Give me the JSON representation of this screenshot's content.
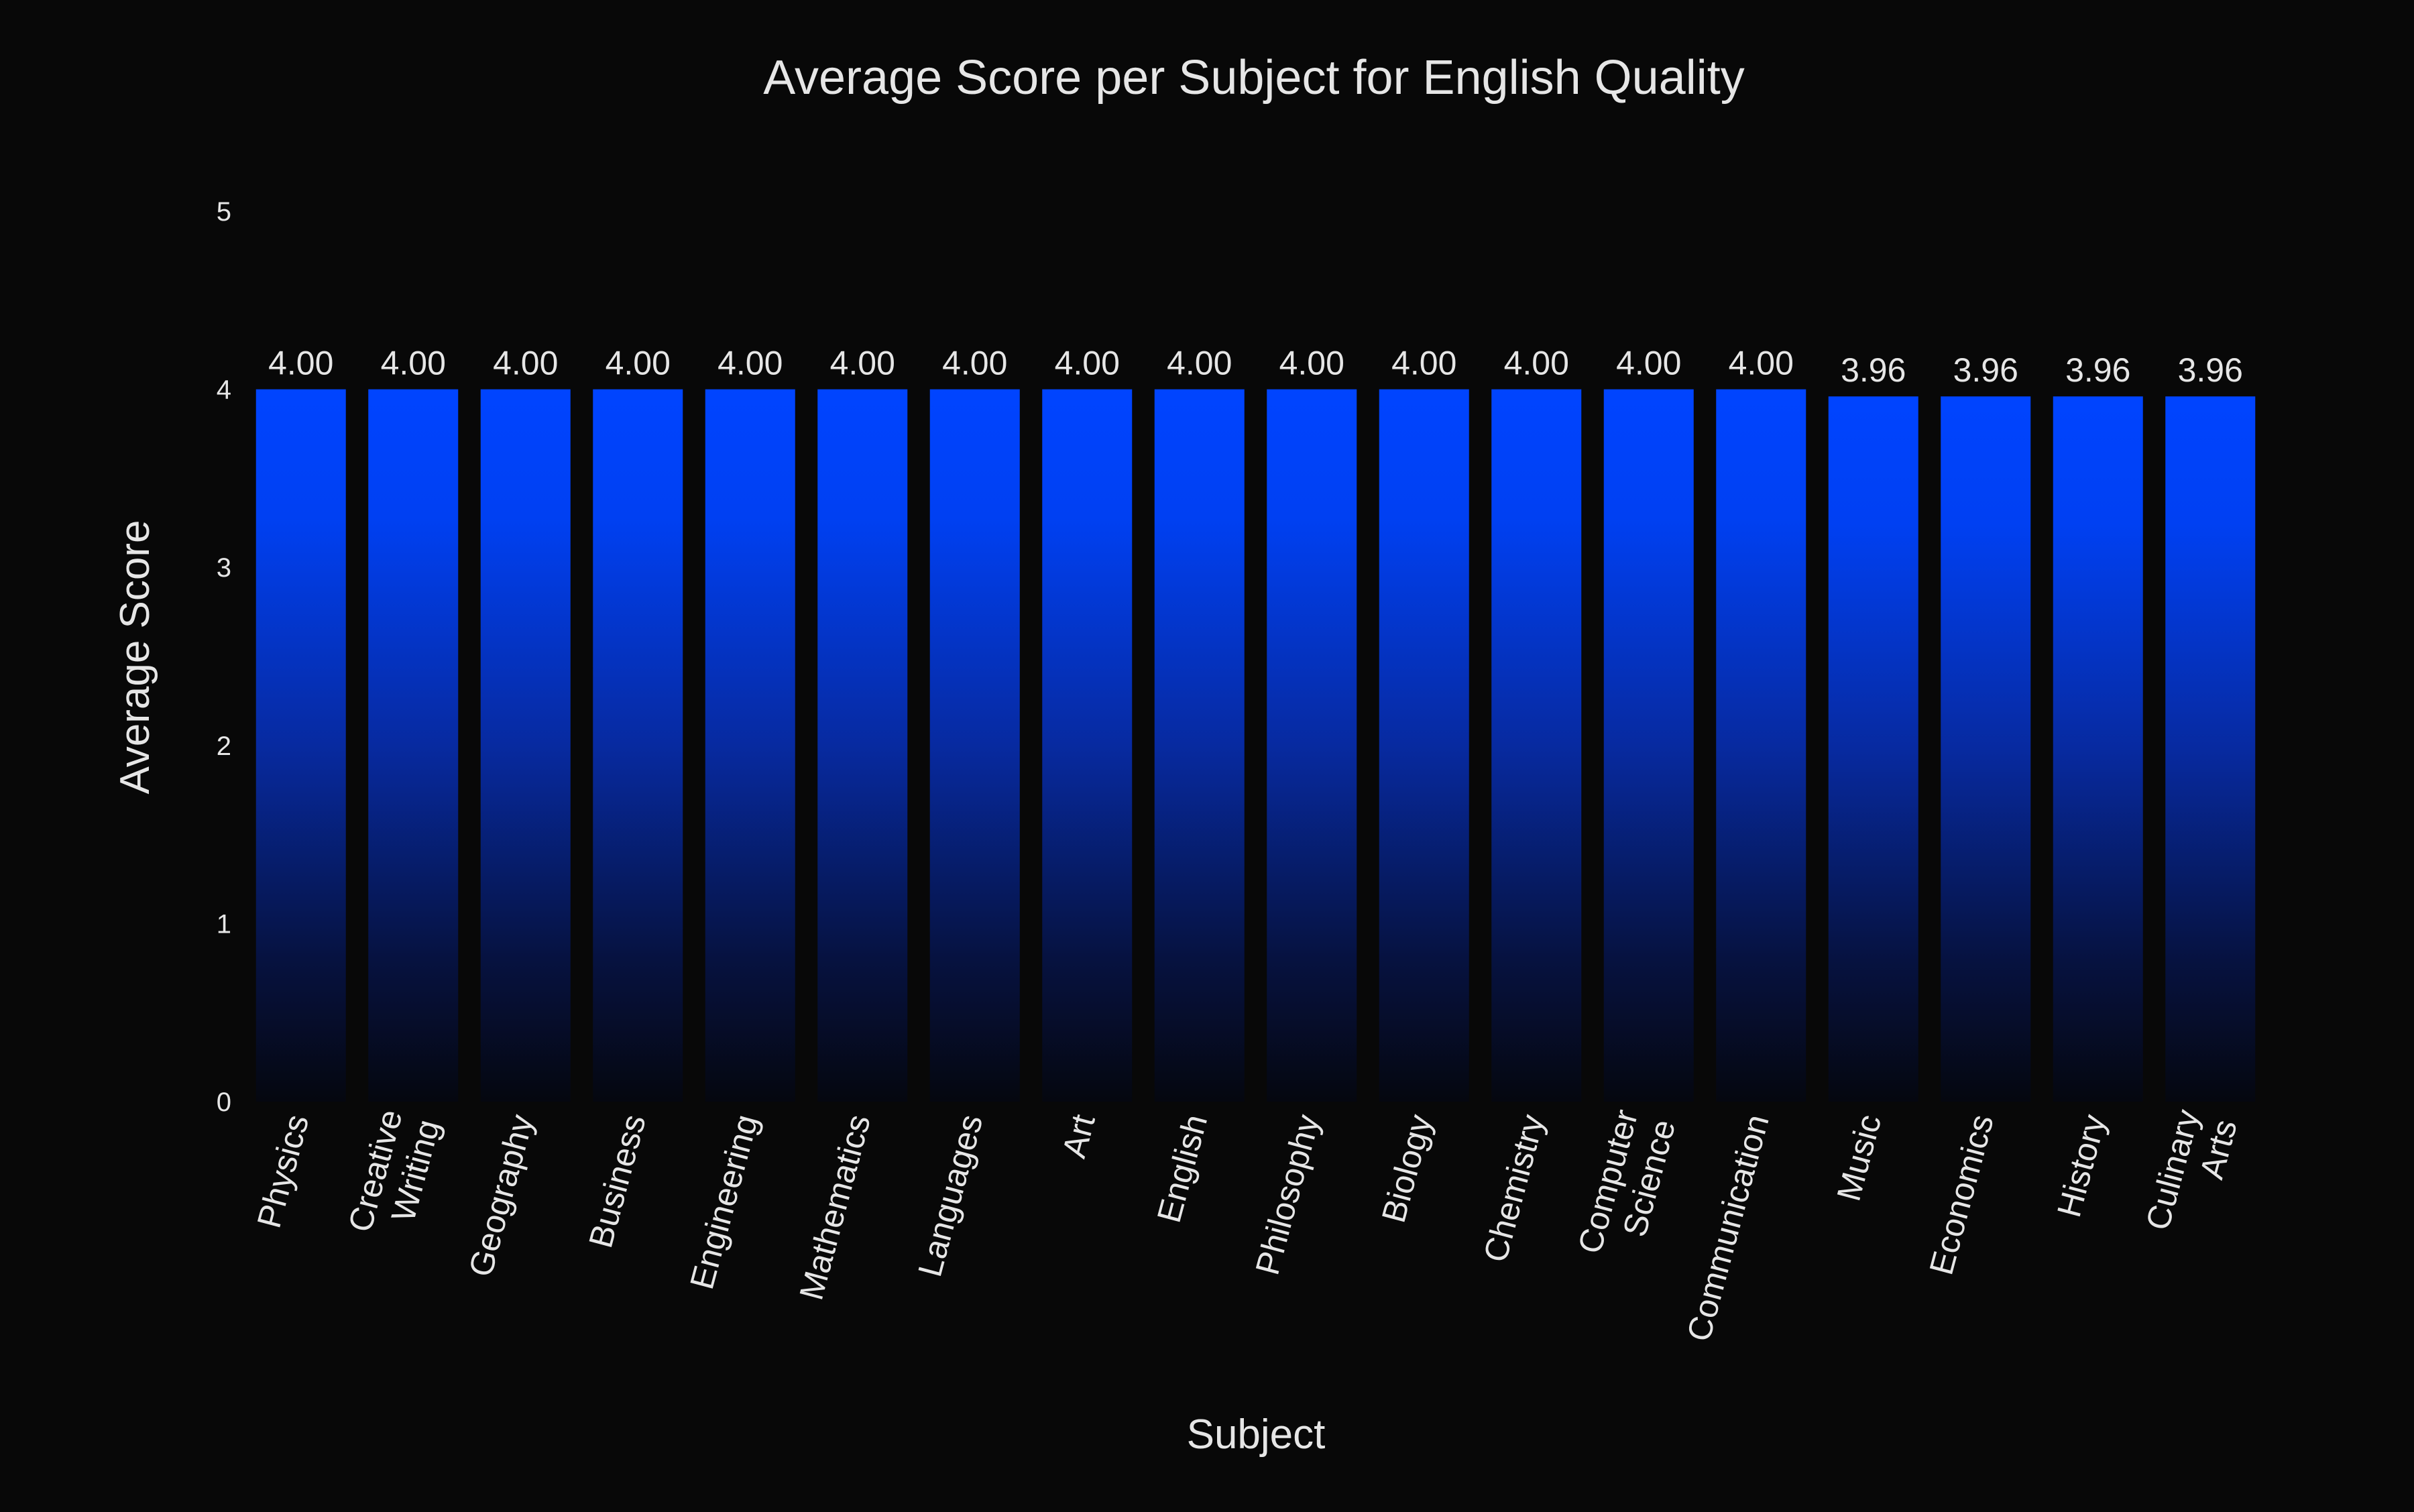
{
  "chart_data": {
    "type": "bar",
    "title": "Average Score per Subject for English Quality",
    "xlabel": "Subject",
    "ylabel": "Average Score",
    "categories": [
      "Physics",
      "Creative Writing",
      "Geography",
      "Business",
      "Engineering",
      "Mathematics",
      "Languages",
      "Art",
      "English",
      "Philosophy",
      "Biology",
      "Chemistry",
      "Computer Science",
      "Communication",
      "Music",
      "Economics",
      "History",
      "Culinary Arts"
    ],
    "values": [
      4.0,
      4.0,
      4.0,
      4.0,
      4.0,
      4.0,
      4.0,
      4.0,
      4.0,
      4.0,
      4.0,
      4.0,
      4.0,
      4.0,
      3.96,
      3.96,
      3.96,
      3.96
    ],
    "data_labels": [
      "4.00",
      "4.00",
      "4.00",
      "4.00",
      "4.00",
      "4.00",
      "4.00",
      "4.00",
      "4.00",
      "4.00",
      "4.00",
      "4.00",
      "4.00",
      "4.00",
      "3.96",
      "3.96",
      "3.96",
      "3.96"
    ],
    "yticks": [
      0,
      1,
      2,
      3,
      4,
      5
    ],
    "ylim": [
      0,
      5
    ],
    "grid": false,
    "legend": "none",
    "colors": {
      "background": "#080808",
      "bar_top": "#0044ff",
      "bar_bottom": "#05070f",
      "text": "#e6e6e6"
    }
  }
}
